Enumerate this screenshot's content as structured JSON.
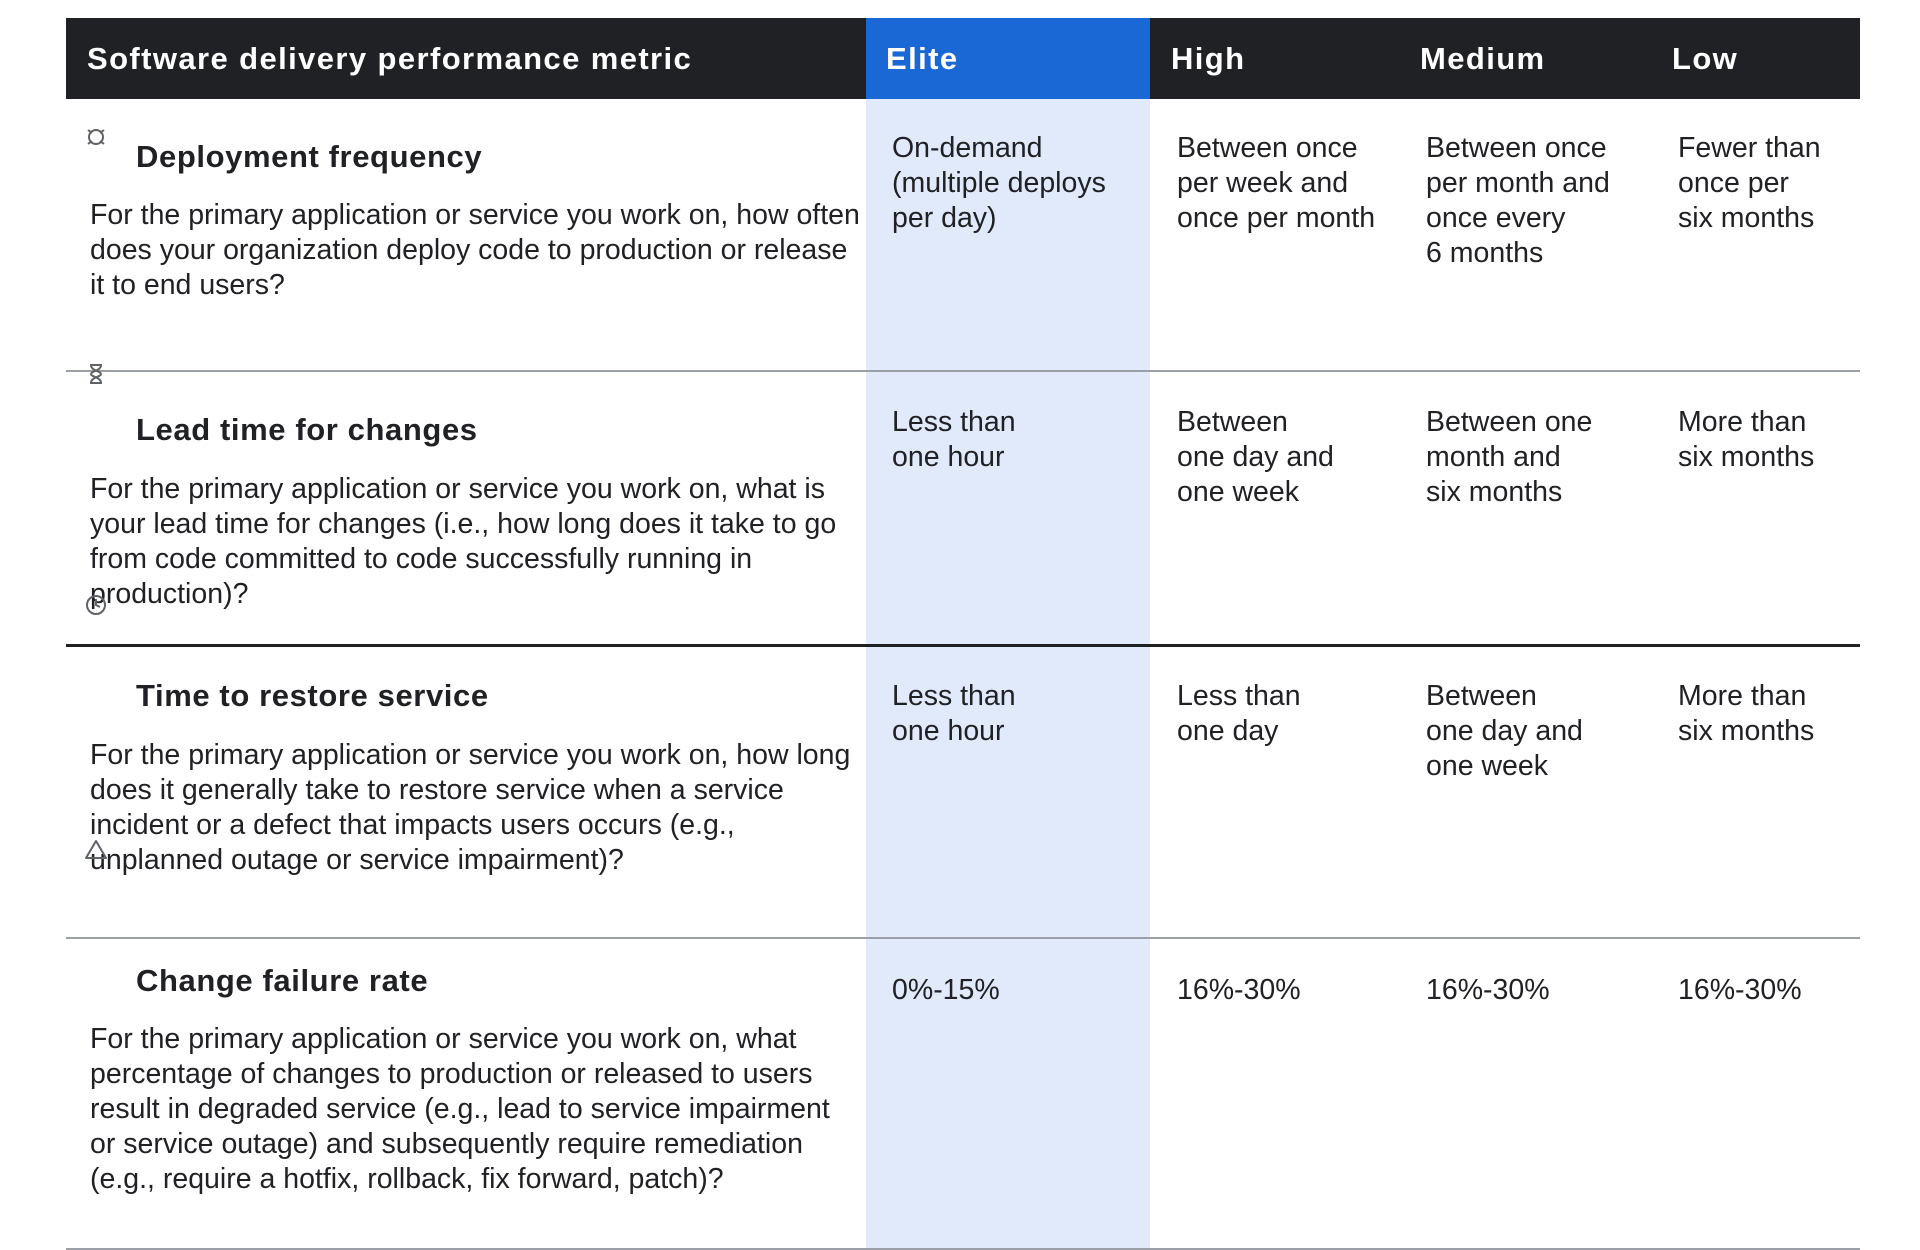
{
  "header": {
    "metric_label": "Software delivery performance metric",
    "elite_label": "Elite",
    "high_label": "High",
    "medium_label": "Medium",
    "low_label": "Low"
  },
  "colors": {
    "header_bg": "#202124",
    "elite_accent": "#1a68d6",
    "elite_column_tint": "#e0eafb"
  },
  "rows": [
    {
      "icon": "rocket-icon",
      "title": "Deployment frequency",
      "description": "For the primary application or service you work on, how often does your organization deploy code to production or release it to end users?",
      "elite": "On-demand\n(multiple deploys\nper day)",
      "high": "Between once\nper week and\nonce per month",
      "medium": "Between once\nper month and\nonce every\n6 months",
      "low": "Fewer than\nonce per\nsix months"
    },
    {
      "icon": "hourglass-icon",
      "title": "Lead time for changes",
      "description": "For the primary application or service you work on, what is your lead time for changes (i.e., how long does it take to go from code committed to code successfully running in production)?",
      "elite": "Less than\none hour",
      "high": "Between\none day and\none week",
      "medium": "Between one\nmonth and\nsix months",
      "low": "More than\nsix months"
    },
    {
      "icon": "clock-icon",
      "title": "Time to restore service",
      "description": "For the primary application or service you work on, how long does it generally take to restore service when a service incident or a defect that impacts users occurs (e.g., unplanned outage or service impairment)?",
      "elite": "Less than\none hour",
      "high": "Less than\none day",
      "medium": "Between\none day and\none week",
      "low": "More than\nsix months"
    },
    {
      "icon": "warning-icon",
      "title": "Change failure rate",
      "description": "For the primary application or service you work on, what percentage of changes to production or released to users result in degraded service (e.g., lead to service impairment or service outage) and subsequently require remediation (e.g., require a hotfix, rollback, fix forward, patch)?",
      "elite": "0%-15%",
      "high": "16%-30%",
      "medium": "16%-30%",
      "low": "16%-30%"
    }
  ]
}
